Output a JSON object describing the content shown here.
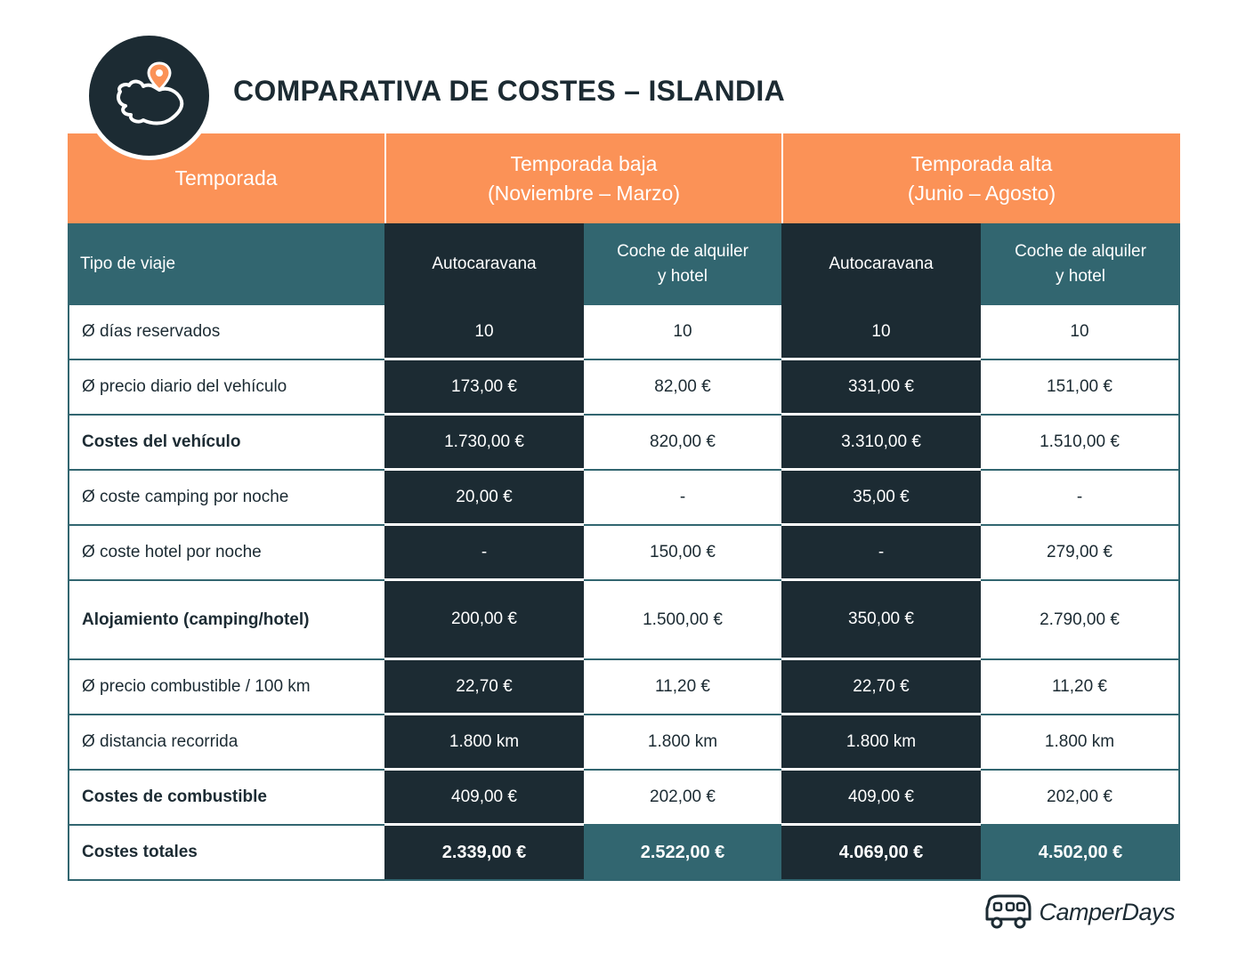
{
  "title": "COMPARATIVA DE COSTES – ISLANDIA",
  "seasons": {
    "label": "Temporada",
    "low": "Temporada baja\n(Noviembre – Marzo)",
    "high": "Temporada alta\n(Junio – Agosto)"
  },
  "trip_types": {
    "label": "Tipo de viaje",
    "items": [
      "Autocaravana",
      "Coche de alquiler\ny hotel",
      "Autocaravana",
      "Coche de alquiler\ny hotel"
    ]
  },
  "rows": [
    {
      "label": "Ø días reservados",
      "values": [
        "10",
        "10",
        "10",
        "10"
      ]
    },
    {
      "label": "Ø precio diario del vehículo",
      "values": [
        "173,00 €",
        "82,00 €",
        "331,00 €",
        "151,00 €"
      ]
    },
    {
      "label": "Costes del vehículo",
      "values": [
        "1.730,00 €",
        "820,00 €",
        "3.310,00 €",
        "1.510,00 €"
      ]
    },
    {
      "label": "Ø coste camping por noche",
      "values": [
        "20,00 €",
        "-",
        "35,00 €",
        "-"
      ]
    },
    {
      "label": "Ø coste hotel por noche",
      "values": [
        "-",
        "150,00 €",
        "-",
        "279,00 €"
      ]
    },
    {
      "label": "Alojamiento (camping/hotel)",
      "values": [
        "200,00 €",
        "1.500,00 €",
        "350,00 €",
        "2.790,00 €"
      ]
    },
    {
      "label": "Ø precio combustible / 100 km",
      "values": [
        "22,70 €",
        "11,20 €",
        "22,70 €",
        "11,20 €"
      ]
    },
    {
      "label": "Ø distancia recorrida",
      "values": [
        "1.800 km",
        "1.800 km",
        "1.800 km",
        "1.800 km"
      ]
    },
    {
      "label": "Costes de combustible",
      "values": [
        "409,00 €",
        "202,00 €",
        "409,00 €",
        "202,00 €"
      ]
    }
  ],
  "total": {
    "label": "Costes totales",
    "values": [
      "2.339,00 €",
      "2.522,00 €",
      "4.069,00 €",
      "4.502,00 €"
    ]
  },
  "brand": {
    "name": "CamperDays"
  },
  "colors": {
    "orange": "#fb9257",
    "dark": "#1c2b33",
    "teal": "#326670"
  },
  "icons": {
    "badge": "iceland-map-pin-icon",
    "brand": "camper-van-icon"
  }
}
